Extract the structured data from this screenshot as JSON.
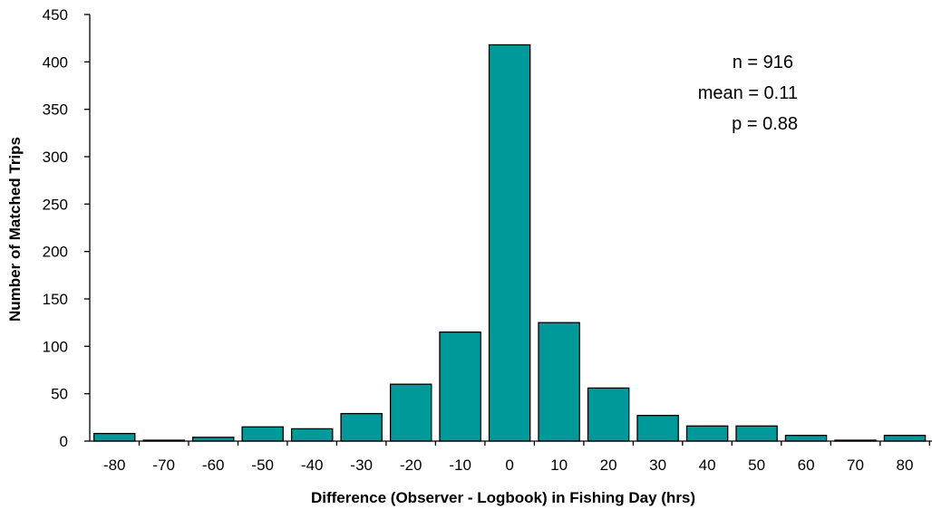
{
  "chart_data": {
    "type": "bar",
    "categories": [
      "-80",
      "-70",
      "-60",
      "-50",
      "-40",
      "-30",
      "-20",
      "-10",
      "0",
      "10",
      "20",
      "30",
      "40",
      "50",
      "60",
      "70",
      "80"
    ],
    "values": [
      8,
      1,
      4,
      15,
      13,
      29,
      60,
      115,
      418,
      125,
      56,
      27,
      16,
      16,
      6,
      1,
      6
    ],
    "title": "",
    "xlabel": "Difference (Observer - Logbook) in Fishing Day (hrs)",
    "ylabel": "Number of Matched Trips",
    "ylim": [
      0,
      450
    ],
    "yticks": [
      "0",
      "50",
      "100",
      "150",
      "200",
      "250",
      "300",
      "350",
      "400",
      "450"
    ],
    "grid": false,
    "legend": "none",
    "bar_color": "#009999",
    "annotations": [
      "n = 916",
      "mean = 0.11",
      "p = 0.88"
    ]
  }
}
